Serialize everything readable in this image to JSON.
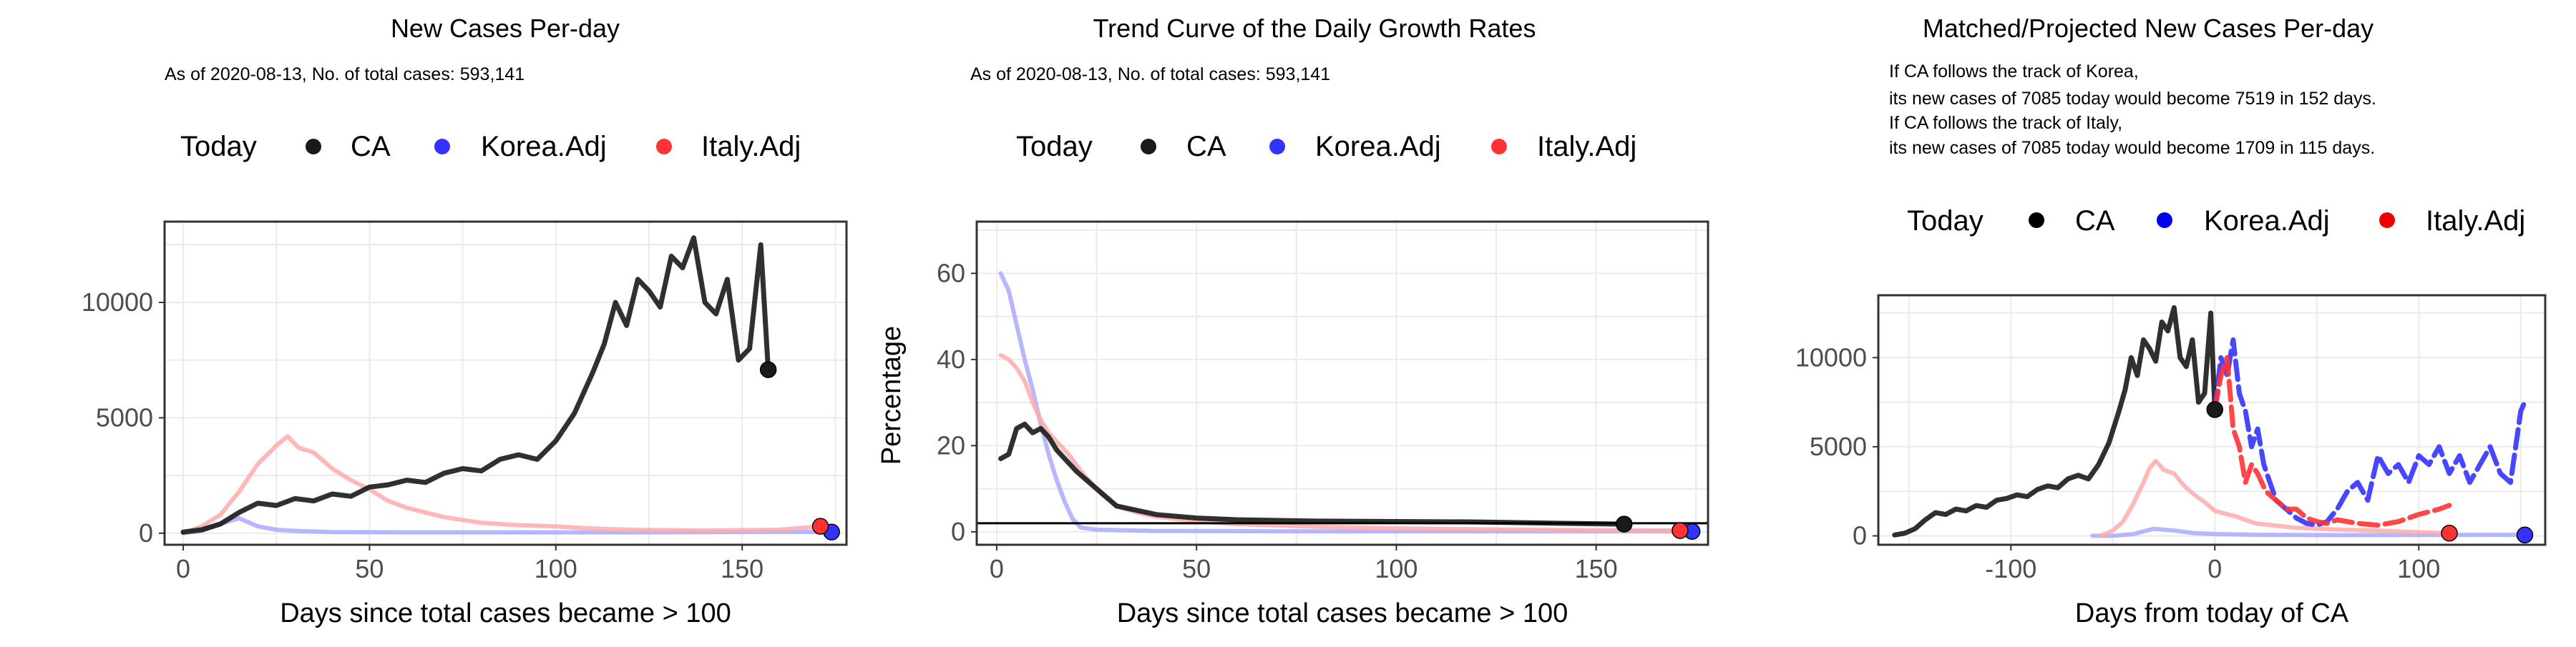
{
  "colors": {
    "ca": "#1a1a1a",
    "korea": "#3333ff",
    "italy": "#ff3333",
    "korea_faint": "#aaaaff",
    "italy_faint": "#ffaaaa",
    "grid": "#ebebeb",
    "panel_border": "#333333"
  },
  "legend": {
    "title": "Today",
    "items": [
      "CA",
      "Korea.Adj",
      "Italy.Adj"
    ]
  },
  "panels": [
    {
      "title": "New Cases Per-day",
      "subtitle_lines": [
        "As of 2020-08-13, No. of total cases: 593,141"
      ]
    },
    {
      "title": "Trend Curve of the Daily Growth Rates",
      "subtitle_lines": [
        "As of 2020-08-13, No. of total cases: 593,141"
      ]
    },
    {
      "title": "Matched/Projected New Cases Per-day",
      "subtitle_lines": [
        "If CA follows the track of Korea,",
        "its new cases of 7085 today would become 7519 in 152 days.",
        "If CA follows the track of Italy,",
        "its new cases of 7085 today would become 1709 in 115 days."
      ]
    }
  ],
  "chart_data": [
    {
      "type": "line",
      "title": "New Cases Per-day",
      "xlabel": "Days since total cases became > 100",
      "ylabel": "",
      "xlim": [
        -5,
        178
      ],
      "ylim": [
        -500,
        13500
      ],
      "xticks": [
        0,
        50,
        100,
        150
      ],
      "yticks": [
        0,
        5000,
        10000
      ],
      "grid": true,
      "legend_position": "top",
      "series": [
        {
          "name": "CA",
          "style": "solid",
          "x": [
            0,
            5,
            10,
            15,
            20,
            25,
            30,
            35,
            40,
            45,
            50,
            55,
            60,
            65,
            70,
            75,
            80,
            85,
            90,
            95,
            100,
            105,
            110,
            113,
            116,
            119,
            122,
            125,
            128,
            131,
            134,
            137,
            140,
            143,
            146,
            149,
            152,
            155,
            157
          ],
          "y": [
            50,
            150,
            400,
            900,
            1300,
            1200,
            1500,
            1400,
            1700,
            1600,
            2000,
            2100,
            2300,
            2200,
            2600,
            2800,
            2700,
            3200,
            3400,
            3200,
            4000,
            5200,
            7000,
            8200,
            10000,
            9000,
            11000,
            10500,
            9800,
            12000,
            11500,
            12800,
            10000,
            9500,
            11000,
            7500,
            8000,
            12500,
            7085
          ]
        },
        {
          "name": "Korea.Adj",
          "style": "faint",
          "x": [
            0,
            5,
            10,
            15,
            20,
            25,
            30,
            40,
            60,
            80,
            100,
            120,
            140,
            160,
            174
          ],
          "y": [
            0,
            100,
            400,
            650,
            300,
            150,
            100,
            50,
            40,
            40,
            40,
            40,
            50,
            60,
            50
          ]
        },
        {
          "name": "Italy.Adj",
          "style": "faint",
          "x": [
            0,
            5,
            10,
            15,
            20,
            25,
            28,
            31,
            35,
            40,
            45,
            50,
            55,
            60,
            70,
            80,
            90,
            100,
            110,
            120,
            140,
            160,
            171
          ],
          "y": [
            0,
            300,
            800,
            1800,
            3000,
            3800,
            4200,
            3700,
            3500,
            2800,
            2300,
            1900,
            1400,
            1100,
            700,
            450,
            350,
            300,
            200,
            150,
            120,
            150,
            300
          ]
        }
      ],
      "today_points": [
        {
          "series": "CA",
          "x": 157,
          "y": 7085
        },
        {
          "series": "Korea.Adj",
          "x": 174,
          "y": 50
        },
        {
          "series": "Italy.Adj",
          "x": 171,
          "y": 300
        }
      ]
    },
    {
      "type": "line",
      "title": "Trend Curve of the Daily Growth Rates",
      "xlabel": "Days since total cases became > 100",
      "ylabel": "Percentage",
      "xlim": [
        -5,
        178
      ],
      "ylim": [
        -3,
        72
      ],
      "xticks": [
        0,
        50,
        100,
        150
      ],
      "yticks": [
        0,
        20,
        40,
        60
      ],
      "hline": 2,
      "grid": true,
      "legend_position": "top",
      "series": [
        {
          "name": "CA",
          "style": "solid",
          "x": [
            1,
            3,
            5,
            7,
            9,
            11,
            13,
            15,
            17,
            20,
            25,
            30,
            35,
            40,
            50,
            60,
            80,
            100,
            120,
            140,
            157
          ],
          "y": [
            17,
            18,
            24,
            25,
            23,
            24,
            22,
            19,
            17,
            14,
            10,
            6,
            5,
            4,
            3.2,
            2.8,
            2.5,
            2.4,
            2.3,
            2.0,
            1.8
          ]
        },
        {
          "name": "Korea.Adj",
          "style": "faint",
          "x": [
            1,
            3,
            5,
            7,
            9,
            11,
            13,
            15,
            17,
            19,
            21,
            25,
            40,
            80,
            120,
            174
          ],
          "y": [
            60,
            56,
            48,
            40,
            33,
            25,
            18,
            12,
            7,
            3,
            1,
            0.5,
            0.2,
            0.1,
            0.1,
            0.1
          ]
        },
        {
          "name": "Italy.Adj",
          "style": "faint",
          "x": [
            1,
            3,
            5,
            7,
            9,
            11,
            13,
            15,
            18,
            22,
            26,
            30,
            35,
            40,
            50,
            60,
            80,
            100,
            130,
            171
          ],
          "y": [
            41,
            40,
            38,
            35,
            30,
            26,
            23,
            21,
            18,
            13,
            9,
            6,
            4.5,
            3.5,
            2.5,
            1.8,
            1.2,
            0.8,
            0.5,
            0.3
          ]
        }
      ],
      "today_points": [
        {
          "series": "CA",
          "x": 157,
          "y": 1.8
        },
        {
          "series": "Korea.Adj",
          "x": 174,
          "y": 0.1
        },
        {
          "series": "Italy.Adj",
          "x": 171,
          "y": 0.3
        }
      ]
    },
    {
      "type": "line",
      "title": "Matched/Projected New Cases Per-day",
      "xlabel": "Days from today of CA",
      "ylabel": "",
      "xlim": [
        -165,
        162
      ],
      "ylim": [
        -500,
        13500
      ],
      "xticks": [
        -100,
        0,
        100
      ],
      "yticks": [
        0,
        5000,
        10000
      ],
      "grid": true,
      "legend_position": "top",
      "series": [
        {
          "name": "CA",
          "style": "solid",
          "x": [
            -157,
            -152,
            -147,
            -142,
            -137,
            -132,
            -127,
            -122,
            -117,
            -112,
            -107,
            -102,
            -97,
            -92,
            -87,
            -82,
            -77,
            -72,
            -67,
            -62,
            -57,
            -52,
            -47,
            -44,
            -41,
            -38,
            -35,
            -32,
            -29,
            -26,
            -23,
            -20,
            -17,
            -14,
            -11,
            -8,
            -5,
            -2,
            0
          ],
          "y": [
            50,
            150,
            400,
            900,
            1300,
            1200,
            1500,
            1400,
            1700,
            1600,
            2000,
            2100,
            2300,
            2200,
            2600,
            2800,
            2700,
            3200,
            3400,
            3200,
            4000,
            5200,
            7000,
            8200,
            10000,
            9000,
            11000,
            10500,
            9800,
            12000,
            11500,
            12800,
            10000,
            9500,
            11000,
            7500,
            8000,
            12500,
            7085
          ]
        },
        {
          "name": "Korea.Adj",
          "style": "faint",
          "x": [
            -60,
            -50,
            -40,
            -30,
            -20,
            -10,
            0,
            20,
            60,
            100,
            140,
            152
          ],
          "y": [
            0,
            0,
            100,
            400,
            300,
            150,
            100,
            60,
            40,
            50,
            60,
            50
          ]
        },
        {
          "name": "Italy.Adj",
          "style": "faint",
          "x": [
            -56,
            -50,
            -45,
            -40,
            -35,
            -32,
            -29,
            -25,
            -20,
            -15,
            -10,
            -5,
            0,
            10,
            20,
            40,
            60,
            80,
            100,
            115
          ],
          "y": [
            0,
            300,
            800,
            1800,
            3000,
            3800,
            4200,
            3700,
            3500,
            2800,
            2300,
            1900,
            1400,
            1100,
            700,
            450,
            350,
            300,
            200,
            150
          ]
        },
        {
          "name": "Korea.Adj",
          "style": "dashed",
          "x": [
            0,
            3,
            6,
            9,
            12,
            15,
            18,
            21,
            24,
            27,
            30,
            35,
            40,
            45,
            50,
            55,
            60,
            65,
            70,
            75,
            80,
            85,
            90,
            95,
            100,
            105,
            110,
            115,
            120,
            125,
            130,
            135,
            140,
            145,
            150,
            152
          ],
          "y": [
            7085,
            10000,
            9000,
            11000,
            8000,
            7000,
            5000,
            6000,
            4000,
            3000,
            2000,
            1500,
            1000,
            700,
            600,
            800,
            1500,
            2500,
            3000,
            2000,
            4500,
            3500,
            4000,
            3000,
            4500,
            4000,
            5000,
            3500,
            4500,
            3000,
            4000,
            5000,
            3500,
            3000,
            7000,
            7519
          ]
        },
        {
          "name": "Italy.Adj",
          "style": "dashed",
          "x": [
            0,
            3,
            6,
            9,
            12,
            15,
            18,
            21,
            25,
            30,
            35,
            40,
            45,
            50,
            55,
            60,
            70,
            80,
            90,
            100,
            110,
            115
          ],
          "y": [
            7085,
            9000,
            10000,
            6000,
            5000,
            3000,
            4000,
            3500,
            2500,
            2000,
            1500,
            1500,
            1000,
            800,
            700,
            900,
            700,
            600,
            800,
            1200,
            1500,
            1709
          ]
        }
      ],
      "today_points": [
        {
          "series": "CA",
          "x": 0,
          "y": 7085
        },
        {
          "series": "Korea.Adj",
          "x": 152,
          "y": 50
        },
        {
          "series": "Italy.Adj",
          "x": 115,
          "y": 150
        }
      ]
    }
  ]
}
